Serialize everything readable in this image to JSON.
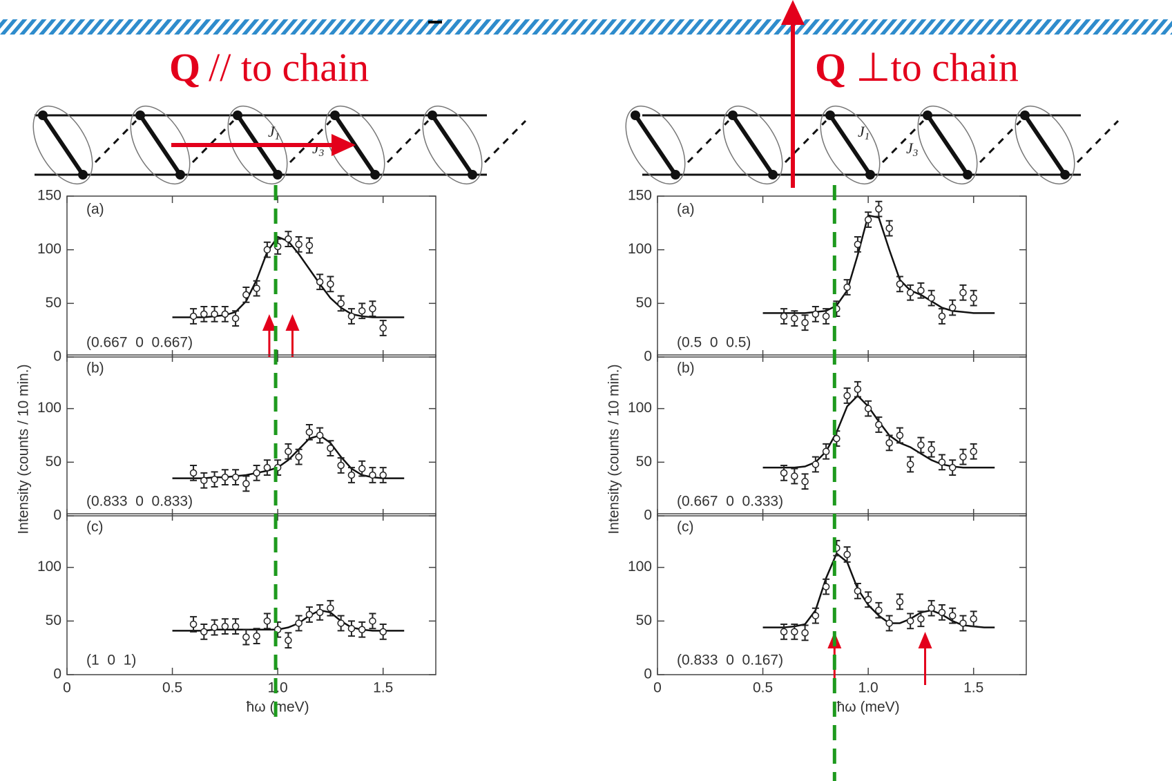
{
  "annotations": {
    "panels": [
      {
        "title_q": "Q",
        "title_rest": "// to chain",
        "j1": "J",
        "j1_sub": "1",
        "j3": "J",
        "j3_sub": "3",
        "vline": 0.99
      },
      {
        "title_q": "Q",
        "title_rest": "⊥to chain",
        "j1": "J",
        "j1_sub": "1",
        "j3": "J",
        "j3_sub": "3",
        "vline": 0.84
      }
    ]
  },
  "chart_data": [
    {
      "type": "scatter",
      "label": "(a)",
      "q_label": "(0.667  0  0.667)",
      "x": [
        0.6,
        0.65,
        0.7,
        0.75,
        0.8,
        0.85,
        0.9,
        0.95,
        1.0,
        1.05,
        1.1,
        1.15,
        1.2,
        1.25,
        1.3,
        1.35,
        1.4,
        1.45,
        1.5
      ],
      "values": [
        38,
        40,
        40,
        40,
        36,
        58,
        64,
        100,
        103,
        110,
        105,
        104,
        70,
        68,
        50,
        38,
        43,
        45,
        27
      ],
      "error": 7,
      "fit_x": [
        0.5,
        0.55,
        0.6,
        0.65,
        0.7,
        0.75,
        0.8,
        0.85,
        0.9,
        0.95,
        1.0,
        1.05,
        1.1,
        1.15,
        1.2,
        1.25,
        1.3,
        1.35,
        1.4,
        1.45,
        1.5,
        1.55,
        1.6
      ],
      "fit_values": [
        37,
        37,
        37,
        37,
        38,
        39,
        42,
        52,
        72,
        98,
        112,
        108,
        96,
        82,
        68,
        55,
        46,
        40,
        38,
        37,
        37,
        37,
        37
      ],
      "arrows": [
        0.96,
        1.07
      ],
      "xlim": [
        0,
        1.75
      ],
      "ylim": [
        0,
        150
      ],
      "yticks": [
        0,
        50,
        100,
        150
      ]
    },
    {
      "type": "scatter",
      "label": "(b)",
      "q_label": "(0.833  0  0.833)",
      "ylabel": "Intensity (counts / 10 min.)",
      "x": [
        0.6,
        0.65,
        0.7,
        0.75,
        0.8,
        0.85,
        0.9,
        0.95,
        1.0,
        1.05,
        1.1,
        1.15,
        1.2,
        1.25,
        1.3,
        1.35,
        1.4,
        1.45,
        1.5
      ],
      "values": [
        40,
        33,
        34,
        36,
        36,
        30,
        40,
        45,
        45,
        60,
        55,
        78,
        75,
        63,
        47,
        38,
        44,
        38,
        38
      ],
      "error": 7,
      "fit_x": [
        0.5,
        0.55,
        0.6,
        0.65,
        0.7,
        0.75,
        0.8,
        0.85,
        0.9,
        0.95,
        1.0,
        1.05,
        1.1,
        1.15,
        1.2,
        1.25,
        1.3,
        1.35,
        1.4,
        1.45,
        1.5,
        1.55,
        1.6
      ],
      "fit_values": [
        35,
        35,
        35,
        35,
        36,
        36,
        37,
        38,
        40,
        42,
        45,
        52,
        62,
        72,
        75,
        68,
        55,
        44,
        38,
        36,
        35,
        35,
        35
      ],
      "xlim": [
        0,
        1.75
      ],
      "ylim": [
        0,
        150
      ],
      "yticks": [
        0,
        50,
        100
      ]
    },
    {
      "type": "scatter",
      "label": "(c)",
      "q_label": "(1  0  1)",
      "xlabel": "ħω (meV)",
      "x": [
        0.6,
        0.65,
        0.7,
        0.75,
        0.8,
        0.85,
        0.9,
        0.95,
        1.0,
        1.05,
        1.1,
        1.15,
        1.2,
        1.25,
        1.3,
        1.35,
        1.4,
        1.45,
        1.5
      ],
      "values": [
        47,
        40,
        44,
        45,
        45,
        35,
        36,
        50,
        42,
        32,
        48,
        56,
        58,
        62,
        48,
        43,
        42,
        50,
        40
      ],
      "error": 7,
      "fit_x": [
        0.5,
        0.55,
        0.6,
        0.65,
        0.7,
        0.75,
        0.8,
        0.85,
        0.9,
        0.95,
        1.0,
        1.05,
        1.1,
        1.15,
        1.2,
        1.25,
        1.3,
        1.35,
        1.4,
        1.45,
        1.5,
        1.55,
        1.6
      ],
      "fit_values": [
        41,
        41,
        41,
        41,
        42,
        42,
        42,
        42,
        42,
        42,
        42,
        44,
        48,
        55,
        60,
        58,
        50,
        44,
        42,
        41,
        41,
        41,
        41
      ],
      "xlim": [
        0,
        1.75
      ],
      "xticks": [
        0,
        0.5,
        {
          "value": 1,
          "label": "1.0"
        },
        1.5
      ],
      "ylim": [
        0,
        150
      ],
      "yticks": [
        0,
        50,
        100
      ]
    },
    {
      "type": "scatter",
      "label": "(a)",
      "q_label": "(0.5  0  0.5)",
      "x": [
        0.6,
        0.65,
        0.7,
        0.75,
        0.8,
        0.85,
        0.9,
        0.95,
        1.0,
        1.05,
        1.1,
        1.15,
        1.2,
        1.25,
        1.3,
        1.35,
        1.4,
        1.45,
        1.5
      ],
      "values": [
        38,
        36,
        32,
        40,
        38,
        45,
        65,
        105,
        128,
        138,
        120,
        68,
        60,
        62,
        55,
        38,
        46,
        60,
        55
      ],
      "error": 7,
      "fit_x": [
        0.5,
        0.55,
        0.6,
        0.65,
        0.7,
        0.75,
        0.8,
        0.85,
        0.9,
        0.95,
        1.0,
        1.05,
        1.1,
        1.15,
        1.2,
        1.25,
        1.3,
        1.35,
        1.4,
        1.45,
        1.5,
        1.55,
        1.6
      ],
      "fit_values": [
        41,
        41,
        41,
        41,
        41,
        42,
        43,
        48,
        62,
        95,
        132,
        130,
        100,
        72,
        62,
        58,
        52,
        46,
        43,
        42,
        41,
        41,
        41
      ],
      "xlim": [
        0,
        1.75
      ],
      "ylim": [
        0,
        150
      ],
      "yticks": [
        0,
        50,
        100,
        150
      ]
    },
    {
      "type": "scatter",
      "label": "(b)",
      "q_label": "(0.667  0  0.333)",
      "ylabel": "Intensity (counts / 10 min.)",
      "x": [
        0.6,
        0.65,
        0.7,
        0.75,
        0.8,
        0.85,
        0.9,
        0.95,
        1.0,
        1.05,
        1.1,
        1.15,
        1.2,
        1.25,
        1.3,
        1.35,
        1.4,
        1.45,
        1.5
      ],
      "values": [
        40,
        37,
        32,
        48,
        60,
        72,
        112,
        118,
        100,
        85,
        68,
        75,
        48,
        66,
        62,
        50,
        45,
        55,
        60
      ],
      "error": 7,
      "fit_x": [
        0.5,
        0.55,
        0.6,
        0.65,
        0.7,
        0.75,
        0.8,
        0.85,
        0.9,
        0.95,
        1.0,
        1.05,
        1.1,
        1.15,
        1.2,
        1.25,
        1.3,
        1.35,
        1.4,
        1.45,
        1.5,
        1.55,
        1.6
      ],
      "fit_values": [
        45,
        45,
        45,
        45,
        46,
        50,
        60,
        78,
        102,
        112,
        102,
        88,
        75,
        68,
        64,
        58,
        52,
        48,
        46,
        45,
        45,
        45,
        45
      ],
      "xlim": [
        0,
        1.75
      ],
      "ylim": [
        0,
        150
      ],
      "yticks": [
        0,
        50,
        100
      ]
    },
    {
      "type": "scatter",
      "label": "(c)",
      "q_label": "(0.833  0  0.167)",
      "xlabel": "ħω (meV)",
      "x": [
        0.6,
        0.65,
        0.7,
        0.75,
        0.8,
        0.85,
        0.9,
        0.95,
        1.0,
        1.05,
        1.1,
        1.15,
        1.2,
        1.25,
        1.3,
        1.35,
        1.4,
        1.45,
        1.5
      ],
      "values": [
        40,
        40,
        39,
        55,
        82,
        118,
        112,
        78,
        70,
        60,
        48,
        68,
        50,
        52,
        62,
        58,
        55,
        48,
        52
      ],
      "error": 7,
      "fit_x": [
        0.5,
        0.55,
        0.6,
        0.65,
        0.7,
        0.75,
        0.8,
        0.85,
        0.9,
        0.95,
        1.0,
        1.05,
        1.1,
        1.15,
        1.2,
        1.25,
        1.3,
        1.35,
        1.4,
        1.45,
        1.5,
        1.55,
        1.6
      ],
      "fit_values": [
        44,
        44,
        44,
        45,
        47,
        60,
        90,
        113,
        105,
        80,
        65,
        55,
        48,
        48,
        52,
        58,
        60,
        56,
        50,
        46,
        45,
        44,
        44
      ],
      "arrows": [
        0.84,
        1.27
      ],
      "xlim": [
        0,
        1.75
      ],
      "xticks": [
        0,
        0.5,
        {
          "value": 1,
          "label": "1.0"
        },
        1.5
      ],
      "ylim": [
        0,
        150
      ],
      "yticks": [
        0,
        50,
        100
      ]
    }
  ]
}
